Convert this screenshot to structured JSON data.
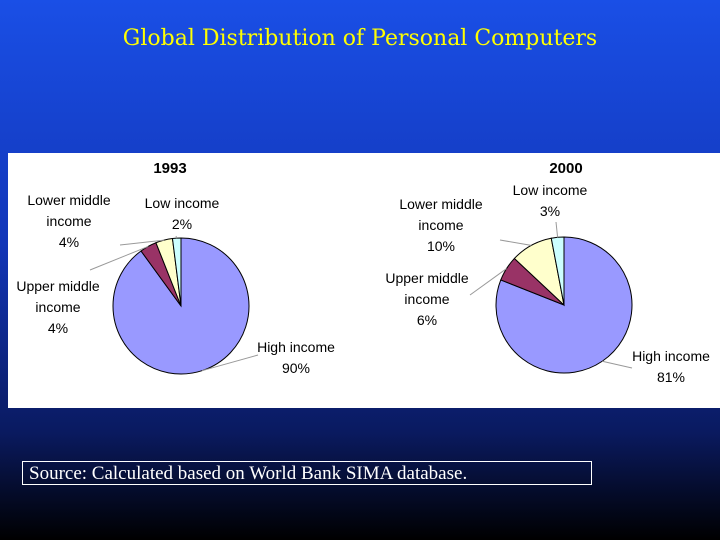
{
  "title": "Global Distribution of Personal Computers",
  "source": "Source: Calculated based on World Bank SIMA database.",
  "chart_data": [
    {
      "type": "pie",
      "title": "1993",
      "categories": [
        "High income",
        "Upper middle income",
        "Lower middle income",
        "Low income"
      ],
      "values": [
        90,
        4,
        4,
        2
      ],
      "value_labels": [
        "90%",
        "4%",
        "4%",
        "2%"
      ],
      "colors": [
        "#9999ff",
        "#993366",
        "#ffffcc",
        "#ccffff"
      ]
    },
    {
      "type": "pie",
      "title": "2000",
      "categories": [
        "High income",
        "Upper middle income",
        "Lower middle income",
        "Low income"
      ],
      "values": [
        81,
        6,
        10,
        3
      ],
      "value_labels": [
        "81%",
        "6%",
        "10%",
        "3%"
      ],
      "colors": [
        "#9999ff",
        "#993366",
        "#ffffcc",
        "#ccffff"
      ]
    }
  ]
}
